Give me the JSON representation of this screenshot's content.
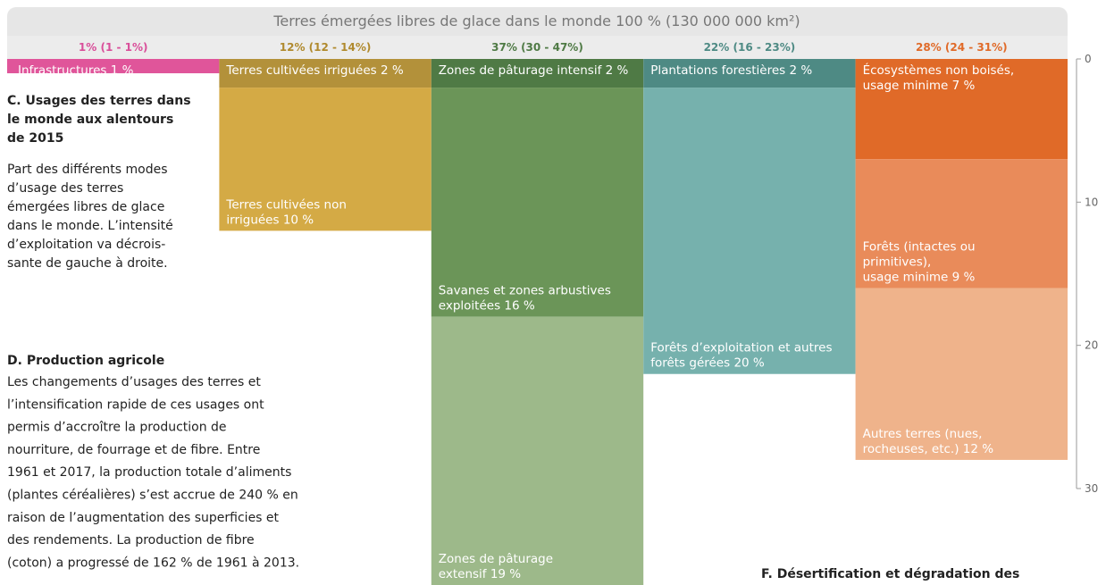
{
  "chart_data": {
    "type": "stacked-column",
    "title": "Terres émergées libres de glace dans le monde 100 % (130 000 000 km²)",
    "ylim": [
      0,
      30
    ],
    "yticks": [
      0,
      10,
      20,
      30
    ],
    "columns": [
      {
        "header": "1% (1 - 1%)",
        "color": "#d94f9a",
        "segments": [
          {
            "name": [
              "Infrastructures 1 %"
            ],
            "value": 1,
            "color": "#e0559a"
          }
        ]
      },
      {
        "header": "12% (12 - 14%)",
        "color": "#b08a2e",
        "segments": [
          {
            "name": [
              "Terres cultivées irriguées 2 %"
            ],
            "value": 2,
            "color": "#b3913a"
          },
          {
            "name": [
              "Terres cultivées non",
              "irriguées 10 %"
            ],
            "value": 10,
            "color": "#d4aa45"
          }
        ]
      },
      {
        "header": "37% (30 - 47%)",
        "color": "#4f7a45",
        "segments": [
          {
            "name": [
              "Zones de pâturage intensif 2 %"
            ],
            "value": 2,
            "color": "#4f7a45"
          },
          {
            "name": [
              "Savanes et zones arbustives",
              "exploitées 16 %"
            ],
            "value": 16,
            "color": "#6b9558"
          },
          {
            "name": [
              "Zones de pâturage",
              "extensif 19 %"
            ],
            "value": 19,
            "color": "#9db98a"
          }
        ]
      },
      {
        "header": "22% (16 - 23%)",
        "color": "#4e8a84",
        "segments": [
          {
            "name": [
              "Plantations forestières 2 %"
            ],
            "value": 2,
            "color": "#4e8a84"
          },
          {
            "name": [
              "Forêts d’exploitation et autres",
              "forêts gérées 20 %"
            ],
            "value": 20,
            "color": "#76b1ad"
          }
        ]
      },
      {
        "header": "28% (24 - 31%)",
        "color": "#e06a28",
        "segments": [
          {
            "name": [
              "Écosystèmes non boisés,",
              "usage minime 7 %"
            ],
            "value": 7,
            "color": "#e06a28"
          },
          {
            "name": [
              "Forêts (intactes ou",
              "primitives),",
              "usage minime 9 %"
            ],
            "value": 9,
            "color": "#e98b5a"
          },
          {
            "name": [
              "Autres terres (nues,",
              "rocheuses, etc.) 12 %"
            ],
            "value": 12,
            "color": "#efb38b"
          }
        ]
      }
    ]
  },
  "sections": [
    {
      "heading": [
        "C. Usages des terres dans",
        "le monde aux alentours",
        "de 2015"
      ],
      "body": [
        "Part des différents modes",
        "d’usage des terres",
        "émergées libres de glace",
        "dans le monde. L’intensité",
        "d’exploitation va décrois-",
        "sante de gauche à droite."
      ]
    },
    {
      "heading": [
        "D. Production agricole"
      ],
      "body": [
        "Les changements d’usages des terres et",
        "l’intensification rapide de ces usages ont",
        "permis d’accroître la production de",
        "nourriture, de fourrage et de fibre. Entre",
        "1961 et 2017, la production totale d’aliments",
        "(plantes céréalières) s’est accrue de 240 % en",
        "raison de l’augmentation des superficies et",
        "des rendements. La production de fibre",
        "(coton) a progressé de 162 % de 1961 à 2013."
      ]
    },
    {
      "heading": [
        "F. Désertification et dégradation des"
      ],
      "body": []
    }
  ]
}
